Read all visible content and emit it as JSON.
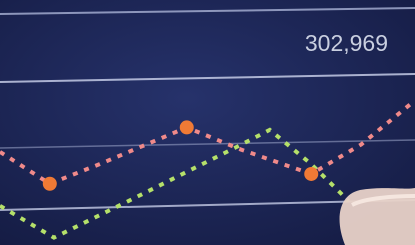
{
  "chart_data": {
    "type": "line",
    "annotation": "302,969",
    "xlim": [
      0,
      100
    ],
    "ylim": [
      0,
      100
    ],
    "series": [
      {
        "color": "#f08a8a",
        "style": "dotted",
        "x": [
          0,
          12,
          24,
          45,
          58,
          75,
          87,
          100
        ],
        "values": [
          38,
          25,
          33,
          48,
          39,
          29,
          41,
          59
        ]
      },
      {
        "color": "#b5e06a",
        "style": "dotted",
        "x": [
          0,
          13,
          31,
          57,
          65,
          75,
          84
        ],
        "values": [
          16,
          3,
          18,
          40,
          47,
          33,
          18
        ]
      },
      {
        "color": "#f07a35",
        "style": "points",
        "x": [
          12,
          45,
          75
        ],
        "values": [
          25,
          48,
          29
        ]
      }
    ]
  }
}
